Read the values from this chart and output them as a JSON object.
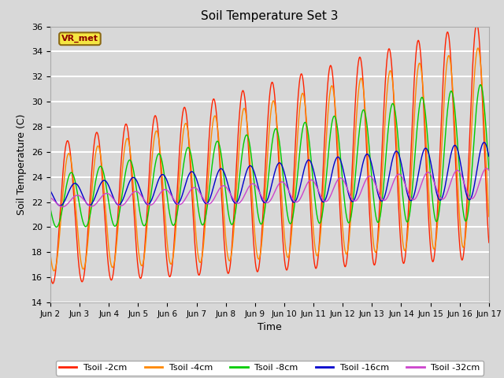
{
  "title": "Soil Temperature Set 3",
  "xlabel": "Time",
  "ylabel": "Soil Temperature (C)",
  "ylim": [
    14,
    36
  ],
  "yticks": [
    14,
    16,
    18,
    20,
    22,
    24,
    26,
    28,
    30,
    32,
    34,
    36
  ],
  "annotation": "VR_met",
  "background_color": "#d8d8d8",
  "plot_bg_color": "#d8d8d8",
  "grid_color": "#ffffff",
  "series": [
    {
      "label": "Tsoil -2cm",
      "color": "#ff2200"
    },
    {
      "label": "Tsoil -4cm",
      "color": "#ff8800"
    },
    {
      "label": "Tsoil -8cm",
      "color": "#00cc00"
    },
    {
      "label": "Tsoil -16cm",
      "color": "#0000cc"
    },
    {
      "label": "Tsoil -32cm",
      "color": "#cc44cc"
    }
  ],
  "date_labels": [
    "Jun 2",
    "Jun 3",
    "Jun 4",
    "Jun 5",
    "Jun 6",
    "Jun 7",
    "Jun 8",
    "Jun 9",
    "Jun 10",
    "Jun 11",
    "Jun 12",
    "Jun 13",
    "Jun 14",
    "Jun 15",
    "Jun 16",
    "Jun 17"
  ],
  "n_days": 15,
  "n_points_per_day": 144
}
